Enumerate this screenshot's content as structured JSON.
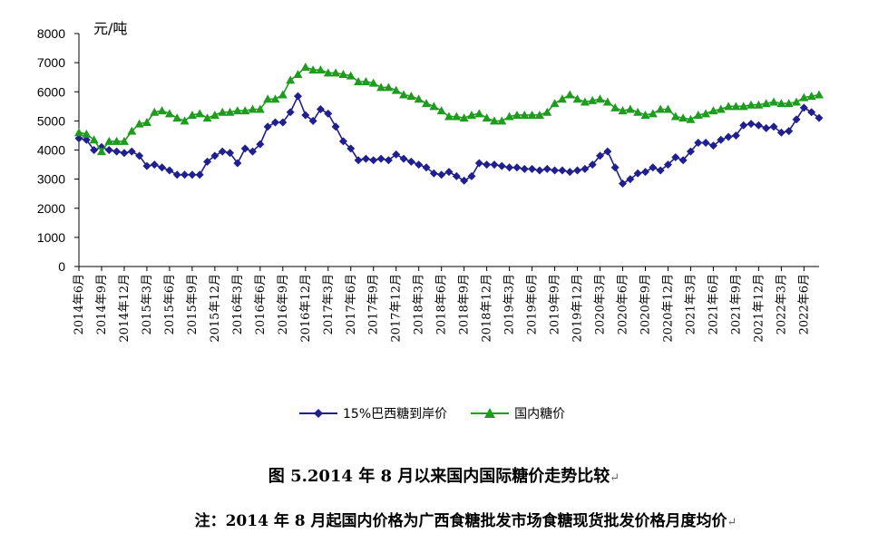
{
  "chart_data": {
    "type": "line",
    "unit_label": "元/吨",
    "ylim": [
      0,
      8000
    ],
    "y_ticks": [
      0,
      1000,
      2000,
      3000,
      4000,
      5000,
      6000,
      7000,
      8000
    ],
    "x_tick_labels": [
      "2014年6月",
      "2014年9月",
      "2014年12月",
      "2015年3月",
      "2015年6月",
      "2015年9月",
      "2015年12月",
      "2016年3月",
      "2016年6月",
      "2016年9月",
      "2016年12月",
      "2017年3月",
      "2017年6月",
      "2017年9月",
      "2017年12月",
      "2018年3月",
      "2018年6月",
      "2018年9月",
      "2018年12月",
      "2019年3月",
      "2019年6月",
      "2019年9月",
      "2019年12月",
      "2020年3月",
      "2020年6月",
      "2020年9月",
      "2020年12月",
      "2021年3月",
      "2021年6月",
      "2021年9月",
      "2021年12月",
      "2022年3月",
      "2022年6月"
    ],
    "grid": false,
    "legend_position": "bottom",
    "series": [
      {
        "name": "15%巴西糖到岸价",
        "color": "#1f1f8f",
        "marker": "diamond",
        "values": [
          4400,
          4350,
          4000,
          4100,
          4000,
          3950,
          3900,
          3950,
          3800,
          3450,
          3500,
          3400,
          3300,
          3150,
          3150,
          3150,
          3150,
          3600,
          3800,
          3950,
          3900,
          3550,
          4050,
          3950,
          4200,
          4800,
          4950,
          4950,
          5300,
          5850,
          5200,
          5000,
          5400,
          5250,
          4800,
          4300,
          4050,
          3650,
          3700,
          3650,
          3700,
          3650,
          3850,
          3700,
          3600,
          3500,
          3400,
          3200,
          3150,
          3250,
          3100,
          2950,
          3100,
          3550,
          3500,
          3500,
          3450,
          3400,
          3400,
          3350,
          3350,
          3300,
          3350,
          3300,
          3300,
          3250,
          3300,
          3350,
          3500,
          3800,
          3950,
          3400,
          2850,
          3000,
          3200,
          3250,
          3400,
          3300,
          3500,
          3750,
          3650,
          3950,
          4250,
          4250,
          4150,
          4350,
          4450,
          4500,
          4850,
          4900,
          4850,
          4750,
          4800,
          4600,
          4650,
          5050,
          5450,
          5300,
          5100
        ]
      },
      {
        "name": "国内糖价",
        "color": "#1e9c1e",
        "marker": "triangle",
        "values": [
          4600,
          4550,
          4350,
          3950,
          4300,
          4300,
          4300,
          4650,
          4900,
          4950,
          5300,
          5350,
          5250,
          5100,
          5000,
          5200,
          5250,
          5100,
          5200,
          5300,
          5300,
          5350,
          5350,
          5400,
          5400,
          5750,
          5750,
          5900,
          6400,
          6600,
          6850,
          6750,
          6750,
          6650,
          6650,
          6600,
          6550,
          6350,
          6350,
          6300,
          6150,
          6150,
          6050,
          5900,
          5850,
          5750,
          5600,
          5500,
          5350,
          5150,
          5150,
          5100,
          5200,
          5250,
          5100,
          5000,
          5000,
          5150,
          5200,
          5200,
          5200,
          5200,
          5300,
          5600,
          5750,
          5900,
          5750,
          5650,
          5700,
          5750,
          5650,
          5450,
          5350,
          5400,
          5300,
          5200,
          5250,
          5400,
          5400,
          5150,
          5100,
          5050,
          5200,
          5250,
          5350,
          5400,
          5500,
          5500,
          5500,
          5550,
          5550,
          5600,
          5650,
          5600,
          5600,
          5650,
          5800,
          5850,
          5900
        ]
      }
    ]
  },
  "caption": {
    "title": "图 5.2014 年 8 月以来国内国际糖价走势比较",
    "note": "注：2014 年 8 月起国内价格为广西食糖批发市场食糖现货批发价格月度均价"
  }
}
